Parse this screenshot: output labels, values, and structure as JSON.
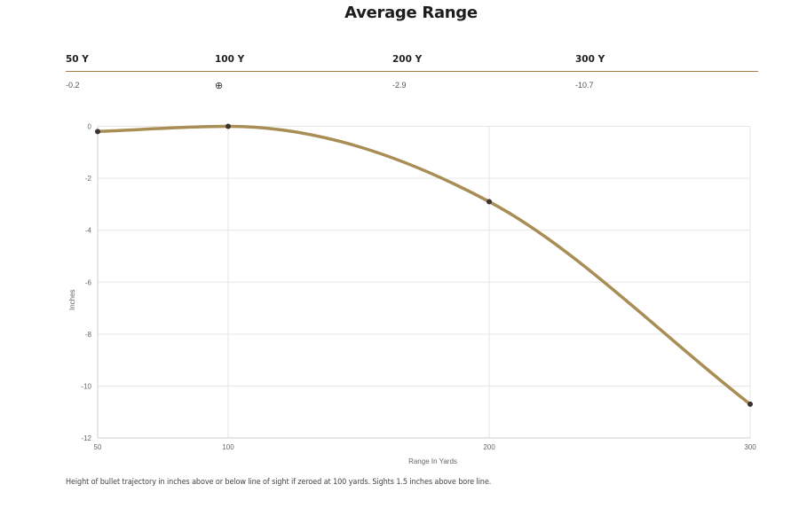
{
  "page": {
    "title": "Average Range",
    "footnote": "Height of bullet trajectory in inches above or below line of sight if zeroed at 100 yards. Sights 1.5 inches above bore line."
  },
  "range_table": {
    "headers": [
      "50 Y",
      "100 Y",
      "200 Y",
      "300 Y"
    ],
    "values": [
      "-0.2",
      "⊕",
      "-2.9",
      "-10.7"
    ]
  },
  "colors": {
    "line": "#a88d55",
    "marker": "#3a3330",
    "rule": "#a37e44",
    "grid": "#e6e6e6"
  },
  "chart_data": {
    "type": "line",
    "title": "",
    "xlabel": "Range In Yards",
    "ylabel": "Inches",
    "x": [
      50,
      100,
      200,
      300
    ],
    "xticks": [
      "50",
      "100",
      "200",
      "300"
    ],
    "yticks": [
      "0",
      "-2",
      "-4",
      "-6",
      "-8",
      "-10",
      "-12"
    ],
    "ylim": [
      -12,
      0
    ],
    "grid": true,
    "series": [
      {
        "values": [
          -0.2,
          0,
          -2.9,
          -10.7
        ]
      }
    ]
  }
}
